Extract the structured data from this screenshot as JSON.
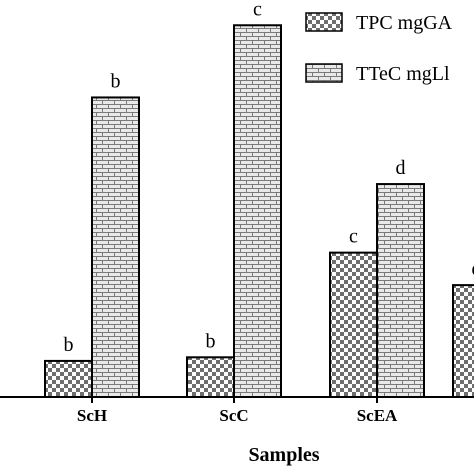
{
  "chart_data": {
    "type": "bar",
    "categories": [
      "ScH",
      "ScC",
      "ScEA",
      ""
    ],
    "xlabel": "Samples",
    "ylabel": "",
    "ylim": [
      0,
      110
    ],
    "legend_position": "top-right",
    "series": [
      {
        "name": "TPC mgGA",
        "values": [
          10,
          11,
          40,
          31
        ],
        "letters": [
          "b",
          "b",
          "c",
          "d"
        ],
        "pattern": "checker"
      },
      {
        "name": "TTeC mgLl",
        "values": [
          83,
          103,
          59,
          null
        ],
        "letters": [
          "b",
          "c",
          "d",
          ""
        ],
        "pattern": "brick"
      }
    ]
  }
}
